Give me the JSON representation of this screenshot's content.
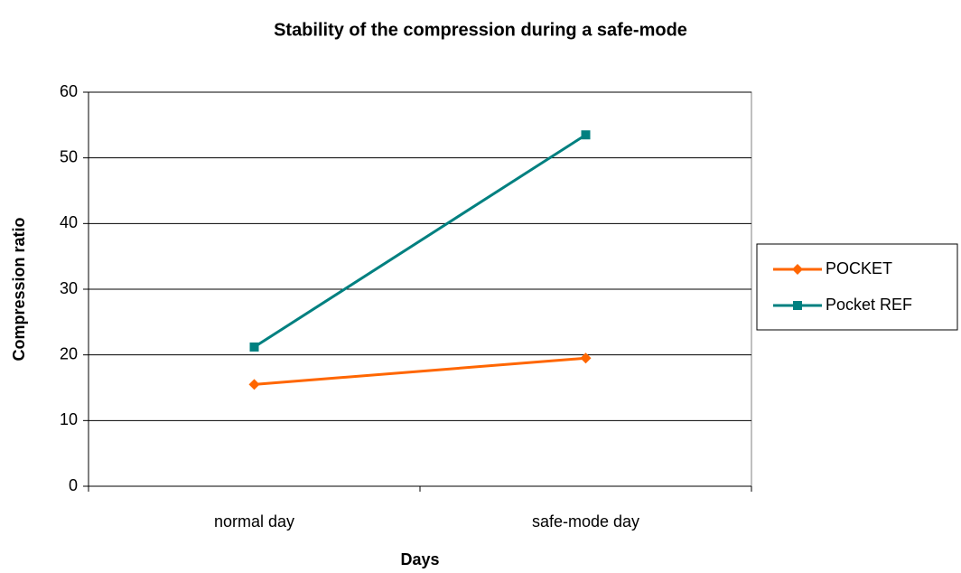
{
  "chart_data": {
    "type": "line",
    "title": "Stability of the compression during a safe-mode",
    "x_label": "Days",
    "y_label": "Compression ratio",
    "categories": [
      "normal day",
      "safe-mode day"
    ],
    "series": [
      {
        "name": "POCKET",
        "color": "#ff6600",
        "marker": "diamond",
        "values": [
          15.5,
          19.5
        ]
      },
      {
        "name": "Pocket REF",
        "color": "#008080",
        "marker": "square",
        "values": [
          21.2,
          53.5
        ]
      }
    ],
    "ylim": [
      0,
      60
    ],
    "yticks": [
      0,
      10,
      20,
      30,
      40,
      50,
      60
    ],
    "grid": true,
    "legend": "right"
  }
}
